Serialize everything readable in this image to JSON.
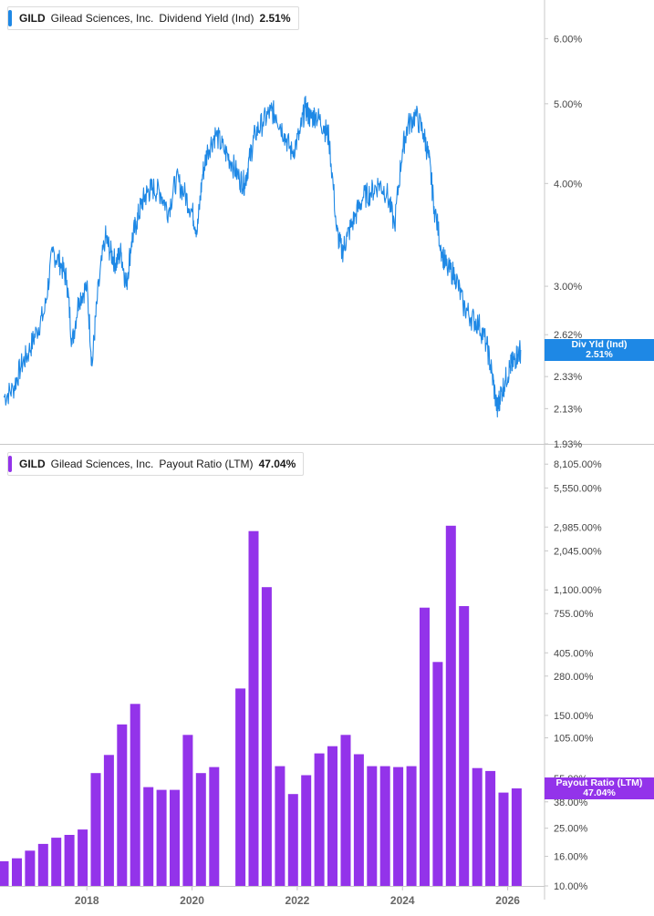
{
  "colors": {
    "yield": "#1e88e5",
    "payout": "#9333ea",
    "axis": "#c8c8c8",
    "tick_text": "#444444"
  },
  "top_panel": {
    "ticker": "GILD",
    "company": "Gilead Sciences, Inc.",
    "metric": "Dividend Yield (Ind)",
    "value": "2.51%",
    "callout_label": "Div Yld (Ind)",
    "callout_value": "2.51%"
  },
  "bottom_panel": {
    "ticker": "GILD",
    "company": "Gilead Sciences, Inc.",
    "metric": "Payout Ratio (LTM)",
    "value": "47.04%",
    "callout_label": "Payout Ratio (LTM)",
    "callout_value": "47.04%"
  },
  "chart_data": [
    {
      "type": "line",
      "scale": "log",
      "title": "GILD Gilead Sciences, Inc. Dividend Yield (Ind) 2.51%",
      "ylim": [
        1.93,
        6.6
      ],
      "yticks": [
        {
          "v": 6.0,
          "label": "6.00%"
        },
        {
          "v": 5.0,
          "label": "5.00%"
        },
        {
          "v": 4.0,
          "label": "4.00%"
        },
        {
          "v": 3.0,
          "label": "3.00%"
        },
        {
          "v": 2.62,
          "label": "2.62%"
        },
        {
          "v": 2.33,
          "label": "2.33%"
        },
        {
          "v": 2.13,
          "label": "2.13%"
        },
        {
          "v": 1.93,
          "label": "1.93%"
        }
      ],
      "series": [
        {
          "name": "Dividend Yield (Ind)",
          "x": [
            2016.42,
            2016.6,
            2016.75,
            2016.9,
            2017.05,
            2017.2,
            2017.35,
            2017.5,
            2017.62,
            2017.72,
            2017.85,
            2018.0,
            2018.1,
            2018.2,
            2018.35,
            2018.45,
            2018.55,
            2018.65,
            2018.75,
            2018.85,
            2018.95,
            2019.05,
            2019.15,
            2019.25,
            2019.4,
            2019.55,
            2019.7,
            2019.85,
            2020.0,
            2020.1,
            2020.2,
            2020.3,
            2020.45,
            2020.6,
            2020.75,
            2020.9,
            2021.0,
            2021.1,
            2021.2,
            2021.35,
            2021.5,
            2021.6,
            2021.75,
            2021.9,
            2022.05,
            2022.15,
            2022.25,
            2022.35,
            2022.5,
            2022.6,
            2022.75,
            2022.85,
            2022.95,
            2023.1,
            2023.25,
            2023.4,
            2023.55,
            2023.7,
            2023.85,
            2024.0,
            2024.1,
            2024.25,
            2024.4,
            2024.5,
            2024.6,
            2024.75,
            2024.85,
            2025.0,
            2025.15,
            2025.3,
            2025.45,
            2025.6,
            2025.7,
            2025.8,
            2025.85,
            2025.95,
            2026.05,
            2026.1,
            2026.18,
            2026.25
          ],
          "values": [
            2.2,
            2.25,
            2.4,
            2.5,
            2.65,
            2.8,
            3.3,
            3.2,
            3.05,
            2.55,
            2.9,
            3.0,
            2.4,
            2.9,
            3.45,
            3.3,
            3.2,
            3.3,
            3.0,
            3.4,
            3.6,
            3.8,
            3.9,
            3.95,
            3.9,
            3.7,
            4.05,
            3.9,
            3.7,
            3.5,
            4.1,
            4.4,
            4.6,
            4.4,
            4.25,
            4.05,
            4.0,
            4.3,
            4.6,
            4.75,
            4.9,
            4.85,
            4.6,
            4.35,
            4.6,
            4.95,
            4.8,
            4.85,
            4.7,
            4.55,
            3.5,
            3.3,
            3.45,
            3.65,
            3.85,
            3.9,
            4.0,
            3.9,
            3.55,
            4.4,
            4.7,
            4.85,
            4.6,
            4.3,
            3.75,
            3.3,
            3.15,
            3.1,
            2.85,
            2.75,
            2.7,
            2.55,
            2.35,
            2.12,
            2.2,
            2.3,
            2.4,
            2.42,
            2.48,
            2.51
          ]
        }
      ]
    },
    {
      "type": "bar",
      "scale": "log",
      "title": "GILD Gilead Sciences, Inc. Payout Ratio (LTM) 47.04%",
      "ylim": [
        10,
        9000
      ],
      "yticks": [
        {
          "v": 8105,
          "label": "8,105.00%"
        },
        {
          "v": 5550,
          "label": "5,550.00%"
        },
        {
          "v": 2985,
          "label": "2,985.00%"
        },
        {
          "v": 2045,
          "label": "2,045.00%"
        },
        {
          "v": 1100,
          "label": "1,100.00%"
        },
        {
          "v": 755,
          "label": "755.00%"
        },
        {
          "v": 405,
          "label": "405.00%"
        },
        {
          "v": 280,
          "label": "280.00%"
        },
        {
          "v": 150,
          "label": "150.00%"
        },
        {
          "v": 105,
          "label": "105.00%"
        },
        {
          "v": 55,
          "label": "55.00%"
        },
        {
          "v": 38,
          "label": "38.00%"
        },
        {
          "v": 25,
          "label": "25.00%"
        },
        {
          "v": 16,
          "label": "16.00%"
        },
        {
          "v": 10,
          "label": "10.00%"
        }
      ],
      "xticks": [
        {
          "v": 2018,
          "label": "2018"
        },
        {
          "v": 2020,
          "label": "2020"
        },
        {
          "v": 2022,
          "label": "2022"
        },
        {
          "v": 2024,
          "label": "2024"
        },
        {
          "v": 2026,
          "label": "2026"
        }
      ],
      "xlim": [
        2016.35,
        2026.7
      ],
      "series": [
        {
          "name": "Payout Ratio (LTM)",
          "x": [
            2016.42,
            2016.67,
            2016.92,
            2017.17,
            2017.42,
            2017.67,
            2017.92,
            2018.17,
            2018.42,
            2018.67,
            2018.92,
            2019.17,
            2019.42,
            2019.67,
            2019.92,
            2020.17,
            2020.42,
            2020.67,
            2020.92,
            2021.17,
            2021.42,
            2021.67,
            2021.92,
            2022.17,
            2022.42,
            2022.67,
            2022.92,
            2023.17,
            2023.42,
            2023.67,
            2023.92,
            2024.17,
            2024.42,
            2024.67,
            2024.92,
            2025.17,
            2025.42,
            2025.67,
            2025.92,
            2026.17
          ],
          "values": [
            14.8,
            15.5,
            17.5,
            19.5,
            21.5,
            22.5,
            24.5,
            60,
            80,
            130,
            180,
            48,
            46,
            46,
            110,
            60,
            66,
            null,
            230,
            2800,
            1150,
            67,
            43,
            58,
            82,
            92,
            110,
            81,
            67,
            67,
            66,
            67,
            830,
            350,
            3050,
            850,
            65,
            62,
            44,
            47.04
          ]
        }
      ]
    }
  ]
}
